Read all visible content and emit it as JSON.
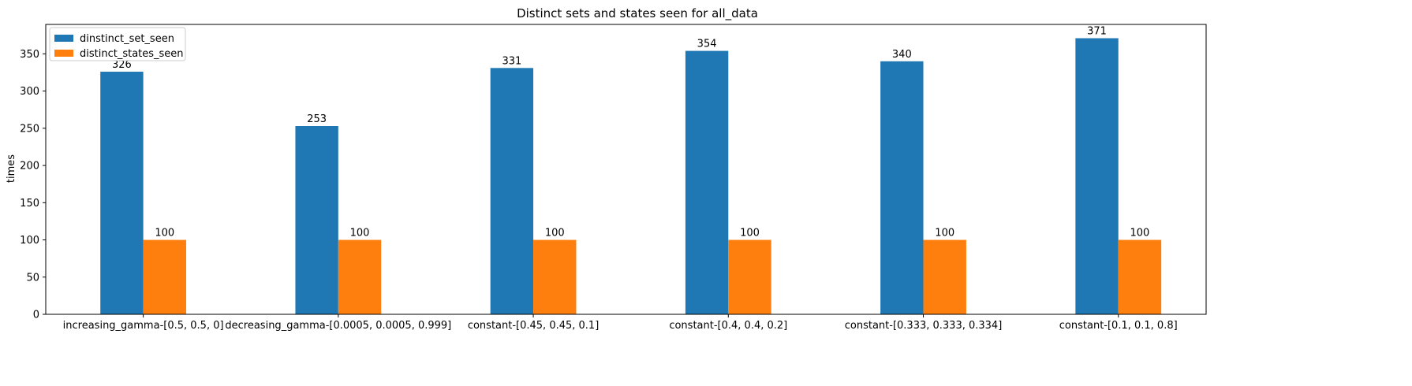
{
  "chart_data": {
    "type": "bar",
    "title": "Distinct sets and states seen for all_data",
    "xlabel": "",
    "ylabel": "times",
    "categories": [
      "increasing_gamma-[0.5, 0.5, 0]",
      "decreasing_gamma-[0.0005, 0.0005, 0.999]",
      "constant-[0.45, 0.45, 0.1]",
      "constant-[0.4, 0.4, 0.2]",
      "constant-[0.333, 0.333, 0.334]",
      "constant-[0.1, 0.1, 0.8]"
    ],
    "series": [
      {
        "name": "dinstinct_set_seen",
        "values": [
          326,
          253,
          331,
          354,
          340,
          371
        ],
        "color": "#1f77b4"
      },
      {
        "name": "distinct_states_seen",
        "values": [
          100,
          100,
          100,
          100,
          100,
          100
        ],
        "color": "#ff7f0e"
      }
    ],
    "yticks": [
      0,
      50,
      100,
      150,
      200,
      250,
      300,
      350
    ],
    "ylim": [
      0,
      389.55
    ],
    "grid": false,
    "legend_position": "top-left"
  }
}
